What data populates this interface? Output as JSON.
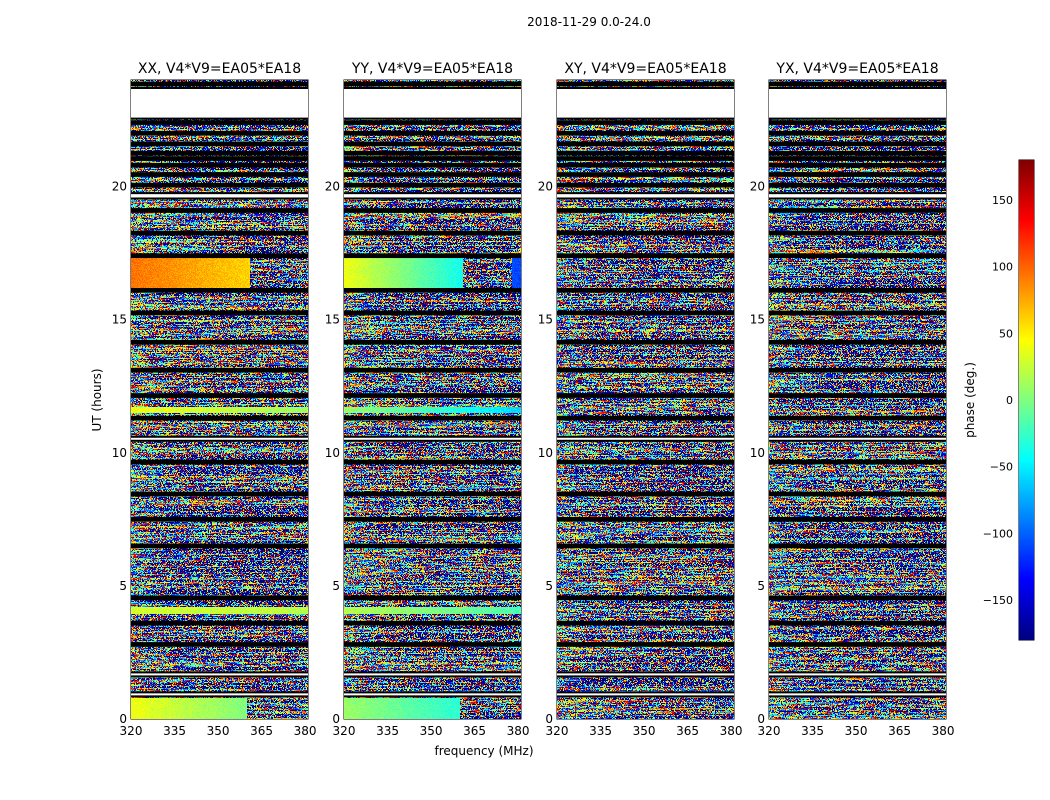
{
  "chart_data": {
    "type": "heatmap",
    "suptitle": "2018-11-29 0.0-24.0",
    "xlabel": "frequency (MHz)",
    "ylabel": "UT (hours)",
    "xlim": [
      320,
      381
    ],
    "ylim": [
      0,
      24
    ],
    "xticks": [
      320,
      335,
      350,
      365,
      380
    ],
    "yticks": [
      0,
      5,
      10,
      15,
      20
    ],
    "panels": [
      {
        "title": "XX, V4*V9=EA05*EA18",
        "coherent_blocks": [
          {
            "t0": 16.2,
            "t1": 17.3,
            "f0": 320,
            "f1": 361,
            "phase_start": 95,
            "phase_end": 60
          },
          {
            "t0": 11.5,
            "t1": 11.7,
            "f0": 320,
            "f1": 381,
            "phase_start": 40,
            "phase_end": 10
          },
          {
            "t0": 3.95,
            "t1": 4.2,
            "f0": 320,
            "f1": 381,
            "phase_start": 30,
            "phase_end": 20
          },
          {
            "t0": 0.0,
            "t1": 0.8,
            "f0": 320,
            "f1": 360,
            "phase_start": 40,
            "phase_end": 0
          }
        ]
      },
      {
        "title": "YY, V4*V9=EA05*EA18",
        "coherent_blocks": [
          {
            "t0": 16.2,
            "t1": 17.3,
            "f0": 320,
            "f1": 361,
            "phase_start": 40,
            "phase_end": -40
          },
          {
            "t0": 16.2,
            "t1": 17.3,
            "f0": 378,
            "f1": 381,
            "phase_start": -110,
            "phase_end": -110
          },
          {
            "t0": 11.5,
            "t1": 11.7,
            "f0": 320,
            "f1": 381,
            "phase_start": 10,
            "phase_end": -60
          },
          {
            "t0": 3.95,
            "t1": 4.2,
            "f0": 320,
            "f1": 381,
            "phase_start": 20,
            "phase_end": -20
          },
          {
            "t0": 0.0,
            "t1": 0.8,
            "f0": 320,
            "f1": 360,
            "phase_start": 10,
            "phase_end": -30
          }
        ]
      },
      {
        "title": "XY, V4*V9=EA05*EA18",
        "coherent_blocks": []
      },
      {
        "title": "YX, V4*V9=EA05*EA18",
        "coherent_blocks": []
      }
    ],
    "flag_bands": [
      [
        0.85,
        1.0
      ],
      [
        1.6,
        1.75
      ],
      [
        2.75,
        2.85
      ],
      [
        3.55,
        3.65
      ],
      [
        4.5,
        4.6
      ],
      [
        6.45,
        6.55
      ],
      [
        7.45,
        7.55
      ],
      [
        8.4,
        8.5
      ],
      [
        9.6,
        9.7
      ],
      [
        10.45,
        10.6
      ],
      [
        11.25,
        11.35
      ],
      [
        12.1,
        12.2
      ],
      [
        13.05,
        13.15
      ],
      [
        14.1,
        14.2
      ],
      [
        15.2,
        15.3
      ],
      [
        16.05,
        16.15
      ],
      [
        17.35,
        17.45
      ],
      [
        18.2,
        18.3
      ],
      [
        19.05,
        19.15
      ],
      [
        19.55,
        19.75
      ],
      [
        20.0,
        20.1
      ],
      [
        20.4,
        20.5
      ],
      [
        20.75,
        20.85
      ],
      [
        21.0,
        21.1
      ],
      [
        21.2,
        21.3
      ],
      [
        21.55,
        21.65
      ],
      [
        21.95,
        22.05
      ],
      [
        22.35,
        22.45
      ],
      [
        22.55,
        23.7
      ],
      [
        23.8,
        23.9
      ]
    ],
    "colorbar": {
      "label": "phase (deg.)",
      "range": [
        -180,
        180
      ],
      "ticks": [
        150,
        100,
        50,
        0,
        -50,
        -100,
        -150
      ],
      "tick_labels": [
        "150",
        "100",
        "50",
        "0",
        "−50",
        "−100",
        "−150"
      ],
      "colormap": "jet"
    }
  }
}
